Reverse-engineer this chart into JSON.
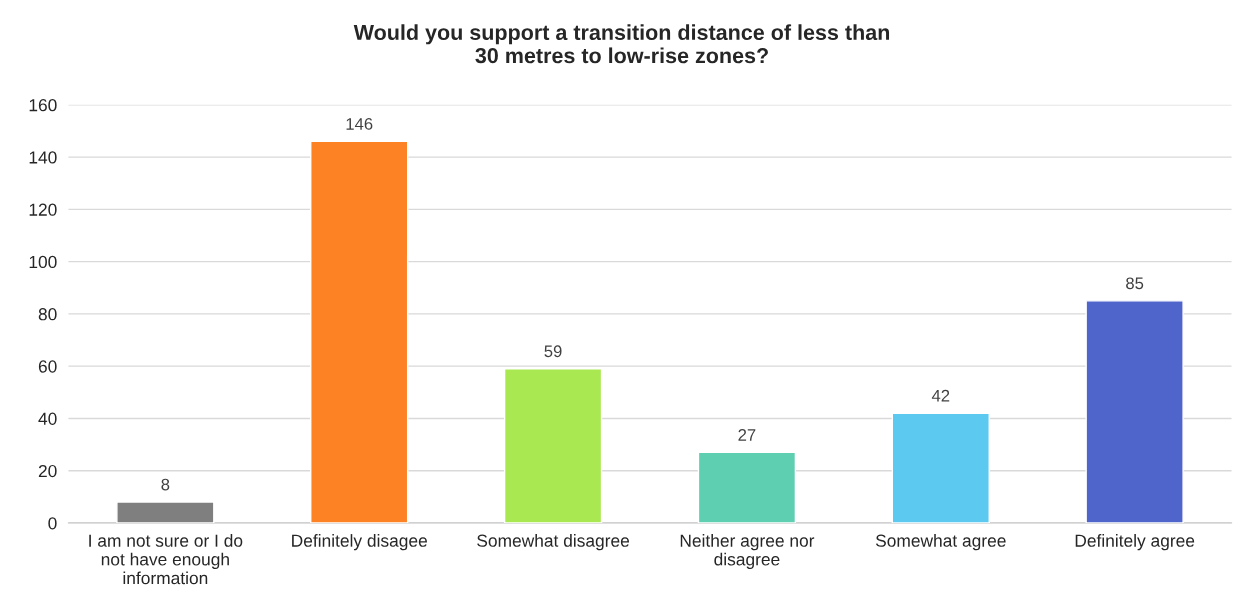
{
  "chart_data": {
    "type": "bar",
    "title": "Would you support a transition distance of less than\n30 metres to low-rise zones?",
    "categories": [
      "I am not sure or I do\nnot have enough\ninformation",
      "Definitely disagee",
      "Somewhat disagree",
      "Neither agree nor\ndisagree",
      "Somewhat agree",
      "Definitely agree"
    ],
    "values": [
      8,
      146,
      59,
      27,
      42,
      85
    ],
    "colors": [
      "#7f7f7f",
      "#fd8224",
      "#a9e851",
      "#5ecfb1",
      "#5bc9f0",
      "#5065cb"
    ],
    "ylim": [
      0,
      160
    ],
    "yticks": [
      0,
      20,
      40,
      60,
      80,
      100,
      120,
      140,
      160
    ],
    "grid": "y",
    "data_labels": true
  }
}
